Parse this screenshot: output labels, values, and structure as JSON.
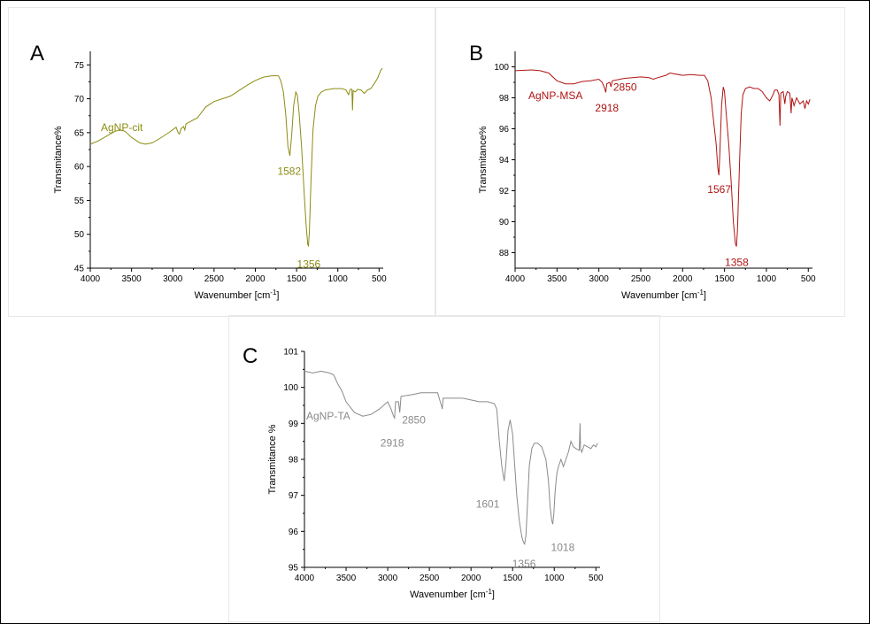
{
  "chart_data": [
    {
      "id": "A",
      "type": "line",
      "panel_label": "A",
      "xlabel": "Wavenumber [cm",
      "xlabel_sup": "-1",
      "xlabel_tail": "]",
      "ylabel": "Transmitance%",
      "xlim": [
        4000,
        450
      ],
      "ylim": [
        45,
        77
      ],
      "xticks": [
        4000,
        3500,
        3000,
        2500,
        2000,
        1500,
        1000,
        500
      ],
      "yticks": [
        45,
        50,
        55,
        60,
        65,
        70,
        75
      ],
      "color": "#8c8c14",
      "series_label": "AgNP-cit",
      "annotations": [
        {
          "text": "1582",
          "x": 1582,
          "y": 60.6
        },
        {
          "text": "1356",
          "x": 1356,
          "y": 46.9
        }
      ],
      "points": [
        [
          4000,
          63.3
        ],
        [
          3900,
          63.8
        ],
        [
          3800,
          64.5
        ],
        [
          3700,
          65.2
        ],
        [
          3640,
          65.4
        ],
        [
          3580,
          65.2
        ],
        [
          3500,
          64.3
        ],
        [
          3400,
          63.5
        ],
        [
          3330,
          63.3
        ],
        [
          3250,
          63.5
        ],
        [
          3150,
          64.2
        ],
        [
          3050,
          65.0
        ],
        [
          2960,
          65.8
        ],
        [
          2935,
          65.0
        ],
        [
          2920,
          64.8
        ],
        [
          2900,
          65.6
        ],
        [
          2870,
          65.9
        ],
        [
          2855,
          65.4
        ],
        [
          2840,
          66.3
        ],
        [
          2700,
          67.2
        ],
        [
          2600,
          68.8
        ],
        [
          2500,
          69.6
        ],
        [
          2400,
          70.0
        ],
        [
          2350,
          70.2
        ],
        [
          2300,
          70.4
        ],
        [
          2200,
          71.2
        ],
        [
          2100,
          72.0
        ],
        [
          2000,
          72.7
        ],
        [
          1900,
          73.2
        ],
        [
          1800,
          73.4
        ],
        [
          1720,
          73.4
        ],
        [
          1690,
          72.6
        ],
        [
          1660,
          71.0
        ],
        [
          1630,
          67.5
        ],
        [
          1605,
          63.0
        ],
        [
          1582,
          61.6
        ],
        [
          1560,
          64.5
        ],
        [
          1535,
          69.0
        ],
        [
          1510,
          71.0
        ],
        [
          1490,
          70.5
        ],
        [
          1470,
          68.0
        ],
        [
          1440,
          63.0
        ],
        [
          1410,
          56.5
        ],
        [
          1385,
          51.5
        ],
        [
          1365,
          48.5
        ],
        [
          1356,
          48.3
        ],
        [
          1345,
          50.5
        ],
        [
          1325,
          58.0
        ],
        [
          1300,
          65.5
        ],
        [
          1270,
          69.0
        ],
        [
          1240,
          70.4
        ],
        [
          1200,
          71.0
        ],
        [
          1150,
          71.3
        ],
        [
          1100,
          71.4
        ],
        [
          1050,
          71.5
        ],
        [
          1000,
          71.5
        ],
        [
          950,
          71.5
        ],
        [
          900,
          71.3
        ],
        [
          870,
          70.6
        ],
        [
          850,
          71.4
        ],
        [
          830,
          71.4
        ],
        [
          822,
          68.3
        ],
        [
          815,
          71.2
        ],
        [
          790,
          71.0
        ],
        [
          760,
          71.4
        ],
        [
          720,
          71.3
        ],
        [
          680,
          70.8
        ],
        [
          640,
          71.3
        ],
        [
          600,
          71.5
        ],
        [
          560,
          72.2
        ],
        [
          520,
          73.0
        ],
        [
          480,
          74.2
        ],
        [
          460,
          74.5
        ]
      ]
    },
    {
      "id": "B",
      "type": "line",
      "panel_label": "B",
      "xlabel": "Wavenumber [cm",
      "xlabel_sup": "-1",
      "xlabel_tail": "]",
      "ylabel": "Transmitance%",
      "xlim": [
        4000,
        450
      ],
      "ylim": [
        87,
        101
      ],
      "xticks": [
        4000,
        3500,
        3000,
        2500,
        2000,
        1500,
        1000,
        500
      ],
      "yticks": [
        88,
        90,
        92,
        94,
        96,
        98,
        100
      ],
      "color": "#b01414",
      "series_label": "AgNP-MSA",
      "annotations": [
        {
          "text": "2850",
          "x": 2850,
          "y": 98.35
        },
        {
          "text": "2918",
          "x": 2918,
          "y": 97.8
        },
        {
          "text": "1567",
          "x": 1567,
          "y": 92.55
        },
        {
          "text": "1358",
          "x": 1358,
          "y": 87.95
        }
      ],
      "points": [
        [
          4000,
          99.75
        ],
        [
          3800,
          99.8
        ],
        [
          3700,
          99.75
        ],
        [
          3600,
          99.6
        ],
        [
          3500,
          99.1
        ],
        [
          3400,
          98.9
        ],
        [
          3300,
          98.9
        ],
        [
          3200,
          99.05
        ],
        [
          3100,
          99.1
        ],
        [
          3000,
          99.2
        ],
        [
          2960,
          99.0
        ],
        [
          2930,
          98.6
        ],
        [
          2918,
          98.35
        ],
        [
          2905,
          98.9
        ],
        [
          2870,
          99.0
        ],
        [
          2855,
          98.7
        ],
        [
          2840,
          99.1
        ],
        [
          2700,
          99.25
        ],
        [
          2600,
          99.3
        ],
        [
          2500,
          99.35
        ],
        [
          2400,
          99.3
        ],
        [
          2350,
          99.2
        ],
        [
          2300,
          99.3
        ],
        [
          2200,
          99.45
        ],
        [
          2150,
          99.6
        ],
        [
          2100,
          99.55
        ],
        [
          2000,
          99.45
        ],
        [
          1900,
          99.5
        ],
        [
          1800,
          99.45
        ],
        [
          1740,
          99.45
        ],
        [
          1700,
          99.1
        ],
        [
          1660,
          98.0
        ],
        [
          1630,
          96.5
        ],
        [
          1600,
          95.0
        ],
        [
          1580,
          93.5
        ],
        [
          1567,
          93.0
        ],
        [
          1555,
          94.5
        ],
        [
          1535,
          97.5
        ],
        [
          1515,
          98.7
        ],
        [
          1500,
          98.4
        ],
        [
          1480,
          97.0
        ],
        [
          1450,
          95.0
        ],
        [
          1420,
          92.5
        ],
        [
          1395,
          90.0
        ],
        [
          1370,
          88.6
        ],
        [
          1358,
          88.4
        ],
        [
          1345,
          89.5
        ],
        [
          1320,
          94.0
        ],
        [
          1300,
          97.0
        ],
        [
          1280,
          98.2
        ],
        [
          1250,
          98.6
        ],
        [
          1200,
          98.7
        ],
        [
          1150,
          98.6
        ],
        [
          1100,
          98.6
        ],
        [
          1050,
          98.4
        ],
        [
          1000,
          98.0
        ],
        [
          960,
          97.8
        ],
        [
          930,
          98.1
        ],
        [
          900,
          98.5
        ],
        [
          870,
          98.5
        ],
        [
          850,
          98.2
        ],
        [
          838,
          96.2
        ],
        [
          828,
          98.3
        ],
        [
          800,
          98.4
        ],
        [
          780,
          97.6
        ],
        [
          770,
          98.1
        ],
        [
          750,
          98.4
        ],
        [
          720,
          98.3
        ],
        [
          705,
          97.0
        ],
        [
          695,
          98.0
        ],
        [
          670,
          97.5
        ],
        [
          640,
          98.0
        ],
        [
          600,
          97.6
        ],
        [
          580,
          97.7
        ],
        [
          560,
          97.8
        ],
        [
          540,
          97.3
        ],
        [
          520,
          97.8
        ],
        [
          500,
          97.6
        ],
        [
          480,
          97.9
        ]
      ]
    },
    {
      "id": "C",
      "type": "line",
      "panel_label": "C",
      "xlabel": "Wavenumber [cm",
      "xlabel_sup": "-1",
      "xlabel_tail": "]",
      "ylabel": "Transmitance %",
      "xlim": [
        4000,
        450
      ],
      "ylim": [
        95,
        101
      ],
      "xticks": [
        4000,
        3500,
        3000,
        2500,
        2000,
        1500,
        1000,
        500
      ],
      "yticks": [
        95,
        96,
        97,
        98,
        99,
        100,
        101
      ],
      "color": "#8a8a8a",
      "series_label": "AgNP-TA",
      "annotations": [
        {
          "text": "2850",
          "x": 2850,
          "y": 98.95
        },
        {
          "text": "2918",
          "x": 2918,
          "y": 98.7
        },
        {
          "text": "1601",
          "x": 1601,
          "y": 96.9
        },
        {
          "text": "1356",
          "x": 1356,
          "y": 95.35
        },
        {
          "text": "1018",
          "x": 1018,
          "y": 95.8
        }
      ],
      "points": [
        [
          4000,
          100.45
        ],
        [
          3900,
          100.4
        ],
        [
          3800,
          100.45
        ],
        [
          3700,
          100.4
        ],
        [
          3650,
          100.35
        ],
        [
          3600,
          100.1
        ],
        [
          3550,
          99.9
        ],
        [
          3500,
          99.6
        ],
        [
          3400,
          99.3
        ],
        [
          3300,
          99.2
        ],
        [
          3200,
          99.25
        ],
        [
          3100,
          99.4
        ],
        [
          3000,
          99.6
        ],
        [
          2960,
          99.4
        ],
        [
          2930,
          99.2
        ],
        [
          2918,
          99.15
        ],
        [
          2905,
          99.6
        ],
        [
          2870,
          99.6
        ],
        [
          2855,
          99.3
        ],
        [
          2840,
          99.75
        ],
        [
          2700,
          99.8
        ],
        [
          2600,
          99.85
        ],
        [
          2500,
          99.85
        ],
        [
          2400,
          99.85
        ],
        [
          2370,
          99.6
        ],
        [
          2355,
          99.5
        ],
        [
          2345,
          99.4
        ],
        [
          2335,
          99.7
        ],
        [
          2300,
          99.7
        ],
        [
          2200,
          99.7
        ],
        [
          2100,
          99.7
        ],
        [
          2000,
          99.65
        ],
        [
          1900,
          99.6
        ],
        [
          1800,
          99.6
        ],
        [
          1720,
          99.55
        ],
        [
          1690,
          99.4
        ],
        [
          1660,
          98.5
        ],
        [
          1630,
          97.8
        ],
        [
          1601,
          97.4
        ],
        [
          1580,
          97.9
        ],
        [
          1555,
          98.8
        ],
        [
          1530,
          99.1
        ],
        [
          1500,
          98.7
        ],
        [
          1480,
          98.0
        ],
        [
          1450,
          97.0
        ],
        [
          1420,
          96.3
        ],
        [
          1390,
          95.85
        ],
        [
          1370,
          95.7
        ],
        [
          1356,
          95.65
        ],
        [
          1340,
          95.9
        ],
        [
          1320,
          96.8
        ],
        [
          1300,
          97.8
        ],
        [
          1270,
          98.3
        ],
        [
          1240,
          98.45
        ],
        [
          1200,
          98.45
        ],
        [
          1150,
          98.35
        ],
        [
          1100,
          98.0
        ],
        [
          1070,
          97.4
        ],
        [
          1050,
          96.7
        ],
        [
          1030,
          96.3
        ],
        [
          1018,
          96.2
        ],
        [
          1005,
          96.5
        ],
        [
          990,
          97.1
        ],
        [
          970,
          97.6
        ],
        [
          950,
          97.8
        ],
        [
          920,
          98.0
        ],
        [
          890,
          97.8
        ],
        [
          860,
          98.0
        ],
        [
          830,
          98.2
        ],
        [
          800,
          98.5
        ],
        [
          770,
          98.35
        ],
        [
          740,
          98.3
        ],
        [
          700,
          98.25
        ],
        [
          690,
          99.0
        ],
        [
          685,
          98.3
        ],
        [
          670,
          98.2
        ],
        [
          640,
          98.4
        ],
        [
          600,
          98.35
        ],
        [
          560,
          98.3
        ],
        [
          530,
          98.4
        ],
        [
          500,
          98.35
        ],
        [
          480,
          98.45
        ]
      ]
    }
  ]
}
